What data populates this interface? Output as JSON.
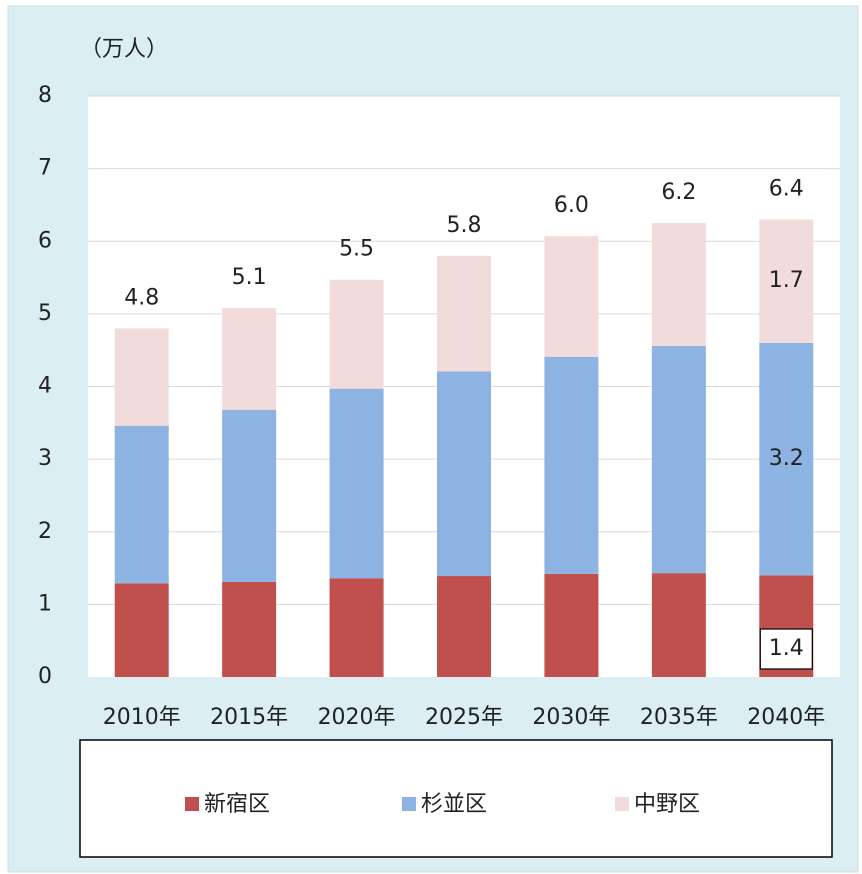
{
  "chart_data": {
    "type": "stacked_bar",
    "unit_label": "（万人）",
    "categories": [
      "2010年",
      "2015年",
      "2020年",
      "2025年",
      "2030年",
      "2035年",
      "2040年"
    ],
    "series": [
      {
        "name": "新宿区",
        "color": "#c0504d",
        "values": [
          1.29,
          1.31,
          1.36,
          1.39,
          1.42,
          1.43,
          1.4
        ],
        "value_labels": [
          null,
          null,
          null,
          null,
          null,
          null,
          "1.4"
        ]
      },
      {
        "name": "杉並区",
        "color": "#8db3e2",
        "values": [
          2.17,
          2.37,
          2.61,
          2.82,
          2.99,
          3.13,
          3.2
        ],
        "value_labels": [
          null,
          null,
          null,
          null,
          null,
          null,
          "3.2"
        ]
      },
      {
        "name": "中野区",
        "color": "#f2dcdb",
        "values": [
          1.34,
          1.4,
          1.5,
          1.59,
          1.66,
          1.69,
          1.7
        ],
        "value_labels": [
          null,
          null,
          null,
          null,
          null,
          null,
          "1.7"
        ]
      }
    ],
    "totals": [
      4.8,
      5.1,
      5.5,
      5.8,
      {
        "value": 6,
        "label": "6.0"
      },
      6.2,
      6.4
    ],
    "ylim": [
      0,
      8
    ],
    "yticks": [
      0,
      1,
      2,
      3,
      4,
      5,
      6,
      7,
      8
    ],
    "grid": true
  }
}
